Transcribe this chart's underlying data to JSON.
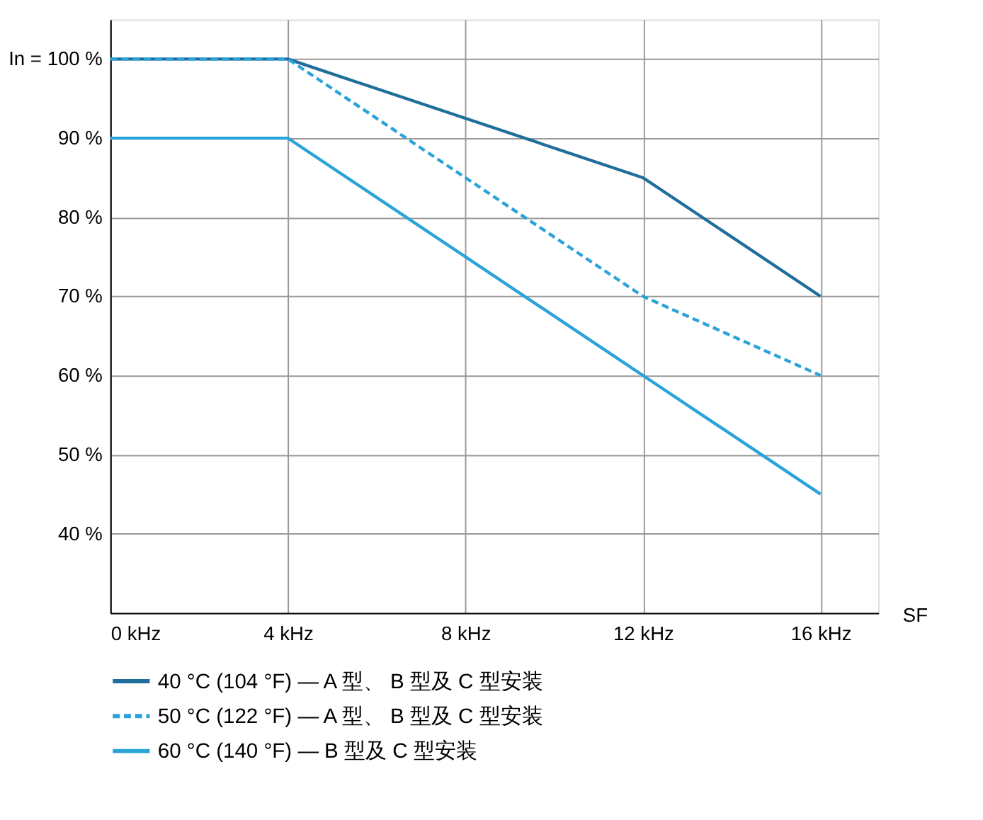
{
  "chart_data": {
    "type": "line",
    "xlabel": "SF",
    "x": [
      0,
      4,
      12,
      16
    ],
    "series": [
      {
        "name": "40 °C (104 °F) — A 型、 B 型及 C 型安装",
        "color": "#1f6e9c",
        "values": [
          100,
          100,
          85,
          70
        ],
        "line_style": "solid"
      },
      {
        "name": "50 °C (122 °F) — A 型、 B 型及 C 型安装",
        "color": "#29a3d8",
        "values": [
          100,
          100,
          70,
          60
        ],
        "line_style": "dashed"
      },
      {
        "name": "60 °C (140 °F) — B 型及 C 型安装",
        "color": "#29a3d8",
        "values": [
          90,
          90,
          60,
          45
        ],
        "line_style": "solid"
      }
    ],
    "xlim": [
      0,
      17.3
    ],
    "ylim": [
      30,
      105
    ],
    "xticks": [
      {
        "value": 0,
        "label": "0 kHz"
      },
      {
        "value": 4,
        "label": "4 kHz"
      },
      {
        "value": 8,
        "label": "8 kHz"
      },
      {
        "value": 12,
        "label": "12 kHz"
      },
      {
        "value": 16,
        "label": "16 kHz"
      }
    ],
    "yticks": [
      {
        "value": 40,
        "label": "40 %"
      },
      {
        "value": 50,
        "label": "50 %"
      },
      {
        "value": 60,
        "label": "60 %"
      },
      {
        "value": 70,
        "label": "70 %"
      },
      {
        "value": 80,
        "label": "80 %"
      },
      {
        "value": 90,
        "label": "90 %"
      },
      {
        "value": 100,
        "label": "In = 100 %"
      }
    ],
    "grid": true,
    "legend": "bottom left",
    "marker": "none"
  }
}
